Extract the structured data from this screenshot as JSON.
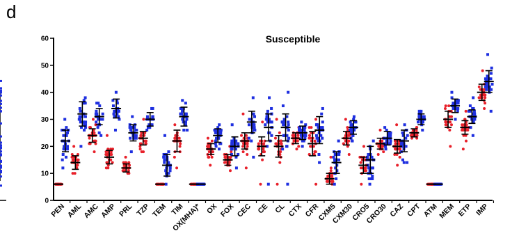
{
  "panel_label": "d",
  "chart_data": {
    "type": "scatter",
    "title": "Susceptible",
    "xlabel": "",
    "ylabel": "",
    "ylim": [
      0,
      60
    ],
    "yticks": [
      0,
      10,
      20,
      30,
      40,
      50,
      60
    ],
    "grid": false,
    "legend": "none",
    "categories": [
      "PEN",
      "AML",
      "AMC",
      "AMP",
      "PRL",
      "TZP",
      "TEM",
      "TIM",
      "OX(MHA)*",
      "OX",
      "FOX",
      "CEC",
      "CE",
      "CL",
      "CTX",
      "CFR",
      "CXM5",
      "CXM30",
      "CRO5",
      "CRO30",
      "CAZ",
      "CPT",
      "ATM",
      "MEM",
      "ETP",
      "IMP"
    ],
    "series": [
      {
        "color": "#e8202a",
        "mean": [
          6,
          14,
          24,
          16,
          12,
          23,
          6,
          22,
          6,
          19,
          15,
          22,
          20,
          20,
          23,
          21,
          8,
          23,
          13,
          21,
          20,
          25,
          6,
          30,
          27,
          40
        ],
        "sd": [
          0,
          2.5,
          2.5,
          2.5,
          1.5,
          2.5,
          0,
          4,
          0,
          2,
          2,
          3,
          3.5,
          4,
          2,
          4.5,
          2,
          2.5,
          3,
          2,
          2.5,
          1.5,
          0,
          3,
          2.5,
          3
        ],
        "min": [
          6,
          10,
          18,
          12,
          10,
          18,
          6,
          12,
          6,
          13,
          11,
          12,
          6,
          6,
          19,
          6,
          6,
          17,
          6,
          17,
          13,
          23,
          6,
          20,
          19,
          34
        ],
        "max": [
          6,
          20,
          30,
          24,
          16,
          30,
          6,
          28,
          6,
          23,
          20,
          32,
          29,
          30,
          27,
          30,
          16,
          30,
          20,
          26,
          28,
          27,
          6,
          35,
          33,
          48
        ]
      },
      {
        "color": "#1e2fe0",
        "mean": [
          22,
          32,
          31,
          34,
          25,
          30,
          13,
          31,
          6,
          24,
          20,
          29,
          27,
          27,
          25,
          26,
          14,
          27,
          15,
          23,
          22,
          30,
          6,
          35,
          31,
          44
        ],
        "sd": [
          4,
          4.5,
          3,
          3.5,
          3,
          2.5,
          4,
          3.5,
          0,
          2.5,
          3.5,
          4,
          5,
          5,
          2.5,
          5,
          4,
          2.5,
          5,
          2.5,
          4,
          2,
          0,
          2.5,
          2.5,
          4
        ],
        "min": [
          12,
          20,
          24,
          26,
          18,
          26,
          6,
          26,
          6,
          19,
          12,
          16,
          6,
          6,
          20,
          14,
          6,
          22,
          6,
          19,
          14,
          26,
          6,
          30,
          24,
          33
        ],
        "max": [
          30,
          38,
          36,
          40,
          31,
          34,
          24,
          37,
          6,
          28,
          28,
          38,
          38,
          40,
          29,
          34,
          22,
          31,
          22,
          27,
          28,
          33,
          6,
          40,
          38,
          54
        ]
      }
    ]
  }
}
